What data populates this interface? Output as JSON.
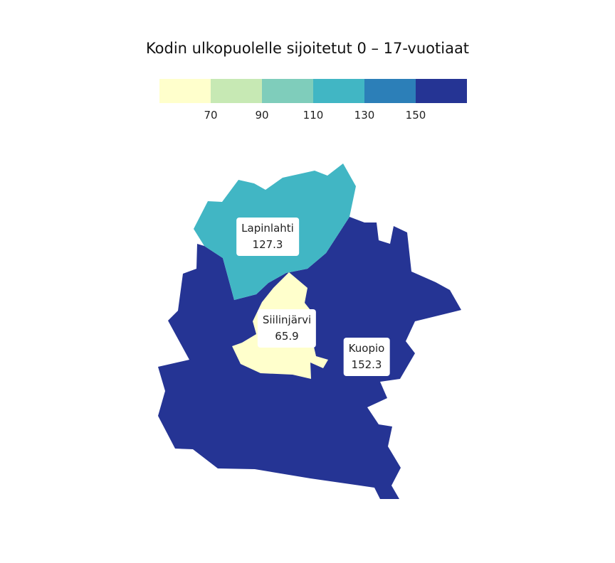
{
  "title": "Kodin ulkopuolelle sijoitetut 0 – 17-vuotiaat",
  "legend": {
    "colors": [
      "#ffffcc",
      "#c7e9b4",
      "#7fcdbb",
      "#41b6c4",
      "#2c7fb8",
      "#253494"
    ],
    "ticks": [
      "70",
      "90",
      "110",
      "130",
      "150"
    ]
  },
  "regions": [
    {
      "name": "Kuopio",
      "value": "152.3",
      "color": "#253494"
    },
    {
      "name": "Lapinlahti",
      "value": "127.3",
      "color": "#41b6c4"
    },
    {
      "name": "Siilinjärvi",
      "value": "65.9",
      "color": "#ffffcc"
    }
  ]
}
